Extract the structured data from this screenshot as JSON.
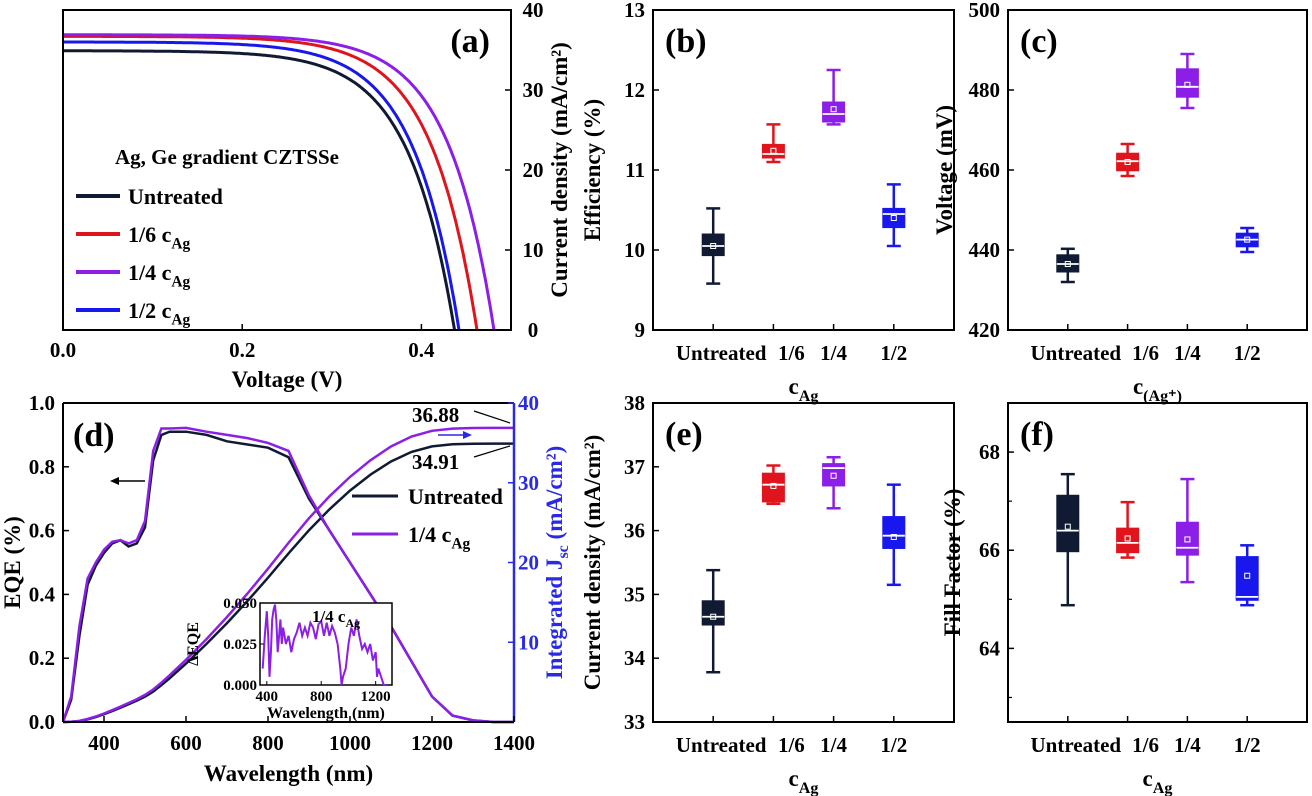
{
  "colors": {
    "untreated": "#101b33",
    "c16": "#e0141c",
    "c14": "#8b1fe8",
    "c12": "#1818ee",
    "axis_blue": "#2a2ae6"
  },
  "chart_data": [
    {
      "id": "a",
      "type": "line",
      "panel_label": "(a)",
      "xlabel": "Voltage (V)",
      "ylabel": "Current density (mA/cm²)",
      "xlim": [
        0,
        0.5
      ],
      "ylim": [
        0,
        40
      ],
      "xticks": [
        "0.0",
        "0.2",
        "0.4"
      ],
      "xtick_values": [
        0,
        0.2,
        0.4
      ],
      "yticks": [
        "0",
        "10",
        "20",
        "30",
        "40"
      ],
      "ytick_values": [
        0,
        10,
        20,
        30,
        40
      ],
      "legend_title": "Ag, Ge gradient CZTSSe",
      "legend": [
        "Untreated",
        "1/6 cAg",
        "1/4 cAg",
        "1/2 cAg"
      ],
      "series": [
        {
          "name": "Untreated",
          "color_key": "untreated",
          "jsc": 34.9,
          "voc": 0.437,
          "n": 2.0
        },
        {
          "name": "1/6 cAg",
          "color_key": "c16",
          "jsc": 36.7,
          "voc": 0.462,
          "n": 2.0
        },
        {
          "name": "1/4 cAg",
          "color_key": "c14",
          "jsc": 36.9,
          "voc": 0.481,
          "n": 2.0
        },
        {
          "name": "1/2 cAg",
          "color_key": "c12",
          "jsc": 36.0,
          "voc": 0.442,
          "n": 2.0
        }
      ]
    },
    {
      "id": "b",
      "type": "box",
      "panel_label": "(b)",
      "xlabel": "cAg",
      "ylabel": "Efficiency (%)",
      "ylim": [
        9,
        13
      ],
      "yticks": [
        "9",
        "10",
        "11",
        "12",
        "13"
      ],
      "ytick_values": [
        9,
        10,
        11,
        12,
        13
      ],
      "categories": [
        "Untreated",
        "1/6",
        "1/4",
        "1/2"
      ],
      "boxes": [
        {
          "color_key": "untreated",
          "min": 9.58,
          "q1": 9.93,
          "median": 10.05,
          "q3": 10.2,
          "max": 10.52,
          "mean": 10.05
        },
        {
          "color_key": "c16",
          "min": 11.1,
          "q1": 11.15,
          "median": 11.2,
          "q3": 11.32,
          "max": 11.57,
          "mean": 11.24
        },
        {
          "color_key": "c14",
          "min": 11.57,
          "q1": 11.6,
          "median": 11.7,
          "q3": 11.85,
          "max": 12.25,
          "mean": 11.76
        },
        {
          "color_key": "c12",
          "min": 10.05,
          "q1": 10.28,
          "median": 10.45,
          "q3": 10.52,
          "max": 10.82,
          "mean": 10.4
        }
      ]
    },
    {
      "id": "c",
      "type": "box",
      "panel_label": "(c)",
      "xlabel": "c",
      "xlabel_sub": "(Ag⁺)",
      "ylabel": "Voltage (mV)",
      "ylim": [
        420,
        500
      ],
      "yticks": [
        "420",
        "440",
        "460",
        "480",
        "500"
      ],
      "ytick_values": [
        420,
        440,
        460,
        480,
        500
      ],
      "categories": [
        "Untreated",
        "1/6",
        "1/4",
        "1/2"
      ],
      "boxes": [
        {
          "color_key": "untreated",
          "min": 432,
          "q1": 434.5,
          "median": 436.5,
          "q3": 438.8,
          "max": 440.3,
          "mean": 436.5
        },
        {
          "color_key": "c16",
          "min": 458.5,
          "q1": 459.8,
          "median": 462.2,
          "q3": 464.2,
          "max": 466.5,
          "mean": 462
        },
        {
          "color_key": "c14",
          "min": 475.5,
          "q1": 478.2,
          "median": 480.8,
          "q3": 485.3,
          "max": 489,
          "mean": 481.3
        },
        {
          "color_key": "c12",
          "min": 439.5,
          "q1": 440.8,
          "median": 442.6,
          "q3": 444.2,
          "max": 445.5,
          "mean": 442.6
        }
      ]
    },
    {
      "id": "d",
      "type": "line",
      "panel_label": "(d)",
      "xlabel": "Wavelength (nm)",
      "ylabel": "EQE (%)",
      "ylabel_right": "Integrated J",
      "ylabel_right_sub": "sc",
      "ylabel_right_unit": " (mA/cm²)",
      "xlim": [
        300,
        1400
      ],
      "ylim": [
        0,
        1.0
      ],
      "ylim_right": [
        0,
        40
      ],
      "xticks": [
        "400",
        "600",
        "800",
        "1000",
        "1200",
        "1400"
      ],
      "xtick_values": [
        400,
        600,
        800,
        1000,
        1200,
        1400
      ],
      "yticks": [
        "0.0",
        "0.2",
        "0.4",
        "0.6",
        "0.8",
        "1.0"
      ],
      "ytick_values": [
        0,
        0.2,
        0.4,
        0.6,
        0.8,
        1.0
      ],
      "yticks_right": [
        "10",
        "20",
        "30",
        "40"
      ],
      "ytick_values_right": [
        10,
        20,
        30,
        40
      ],
      "legend": [
        "Untreated",
        "1/4 cAg"
      ],
      "annotations": [
        "36.88",
        "34.91"
      ],
      "eqe_wavelength": [
        300,
        320,
        340,
        360,
        380,
        400,
        420,
        440,
        460,
        480,
        500,
        520,
        540,
        560,
        600,
        650,
        700,
        750,
        800,
        850,
        900,
        950,
        1000,
        1050,
        1100,
        1150,
        1200,
        1250,
        1300,
        1350,
        1380
      ],
      "series": [
        {
          "name": "Untreated",
          "color_key": "untreated",
          "eqe": [
            0.0,
            0.07,
            0.27,
            0.43,
            0.49,
            0.53,
            0.56,
            0.57,
            0.55,
            0.56,
            0.61,
            0.82,
            0.9,
            0.91,
            0.91,
            0.9,
            0.88,
            0.87,
            0.86,
            0.83,
            0.7,
            0.6,
            0.5,
            0.4,
            0.3,
            0.19,
            0.08,
            0.02,
            0.005,
            0.0,
            0.0
          ]
        },
        {
          "name": "1/4 cAg",
          "color_key": "c14",
          "eqe": [
            0.0,
            0.08,
            0.3,
            0.45,
            0.5,
            0.54,
            0.565,
            0.57,
            0.56,
            0.57,
            0.63,
            0.85,
            0.92,
            0.92,
            0.922,
            0.91,
            0.9,
            0.89,
            0.875,
            0.85,
            0.71,
            0.6,
            0.5,
            0.4,
            0.3,
            0.19,
            0.08,
            0.02,
            0.005,
            0.0,
            0.0
          ]
        }
      ],
      "jsc_final": {
        "Untreated": 34.91,
        "1/4 cAg": 36.88
      },
      "inset": {
        "xlabel": "Wavelength (nm)",
        "ylabel": "ΔEQE",
        "label": "1/4 cAg",
        "xlim": [
          350,
          1320
        ],
        "ylim": [
          0,
          0.05
        ],
        "xticks": [
          "400",
          "800",
          "1200"
        ],
        "xtick_values": [
          400,
          800,
          1200
        ],
        "yticks": [
          "0.000",
          "0.025",
          "0.050"
        ],
        "ytick_values": [
          0,
          0.025,
          0.05
        ],
        "x": [
          370,
          385,
          400,
          410,
          420,
          430,
          440,
          450,
          460,
          470,
          480,
          490,
          500,
          510,
          520,
          540,
          560,
          580,
          600,
          620,
          640,
          660,
          680,
          700,
          720,
          740,
          760,
          780,
          800,
          820,
          840,
          860,
          880,
          900,
          920,
          940,
          950,
          960,
          980,
          1000,
          1020,
          1040,
          1060,
          1080,
          1100,
          1120,
          1140,
          1160,
          1180,
          1200,
          1210,
          1220,
          1240,
          1260,
          1280
        ],
        "values": [
          0.01,
          0.03,
          0.045,
          0.03,
          0.005,
          0.02,
          0.04,
          0.046,
          0.049,
          0.04,
          0.02,
          0.03,
          0.04,
          0.025,
          0.035,
          0.025,
          0.03,
          0.02,
          0.028,
          0.032,
          0.038,
          0.03,
          0.035,
          0.03,
          0.038,
          0.035,
          0.028,
          0.037,
          0.039,
          0.03,
          0.038,
          0.03,
          0.036,
          0.032,
          0.025,
          0.01,
          0.0,
          0.005,
          0.01,
          0.025,
          0.035,
          0.03,
          0.04,
          0.03,
          0.022,
          0.025,
          0.02,
          0.025,
          0.015,
          0.02,
          0.005,
          0.01,
          0.005,
          0.0,
          0.0
        ]
      }
    },
    {
      "id": "e",
      "type": "box",
      "panel_label": "(e)",
      "xlabel": "cAg",
      "ylabel": "Current density (mA/cm²)",
      "ylim": [
        33,
        38
      ],
      "yticks": [
        "33",
        "34",
        "35",
        "36",
        "37",
        "38"
      ],
      "ytick_values": [
        33,
        34,
        35,
        36,
        37,
        38
      ],
      "categories": [
        "Untreated",
        "1/6",
        "1/4",
        "1/2"
      ],
      "boxes": [
        {
          "color_key": "untreated",
          "min": 33.78,
          "q1": 34.52,
          "median": 34.65,
          "q3": 34.9,
          "max": 35.38,
          "mean": 34.65
        },
        {
          "color_key": "c16",
          "min": 36.42,
          "q1": 36.45,
          "median": 36.72,
          "q3": 36.9,
          "max": 37.02,
          "mean": 36.7
        },
        {
          "color_key": "c14",
          "min": 36.35,
          "q1": 36.7,
          "median": 36.98,
          "q3": 37.05,
          "max": 37.15,
          "mean": 36.86
        },
        {
          "color_key": "c12",
          "min": 35.15,
          "q1": 35.72,
          "median": 35.92,
          "q3": 36.22,
          "max": 36.72,
          "mean": 35.9
        }
      ]
    },
    {
      "id": "f",
      "type": "box",
      "panel_label": "(f)",
      "xlabel": "cAg",
      "ylabel": "Fill Factor (%)",
      "ylim": [
        62.5,
        69
      ],
      "yticks": [
        "64",
        "66",
        "68"
      ],
      "ytick_values": [
        64,
        66,
        68
      ],
      "categories": [
        "Untreated",
        "1/6",
        "1/4",
        "1/2"
      ],
      "boxes": [
        {
          "color_key": "untreated",
          "min": 64.88,
          "q1": 65.97,
          "median": 66.4,
          "q3": 67.12,
          "max": 67.55,
          "mean": 66.48
        },
        {
          "color_key": "c16",
          "min": 65.85,
          "q1": 65.95,
          "median": 66.15,
          "q3": 66.45,
          "max": 66.98,
          "mean": 66.24
        },
        {
          "color_key": "c14",
          "min": 65.35,
          "q1": 65.9,
          "median": 66.05,
          "q3": 66.57,
          "max": 67.45,
          "mean": 66.22
        },
        {
          "color_key": "c12",
          "min": 64.88,
          "q1": 64.98,
          "median": 65.05,
          "q3": 65.87,
          "max": 66.1,
          "mean": 65.48
        }
      ]
    }
  ]
}
